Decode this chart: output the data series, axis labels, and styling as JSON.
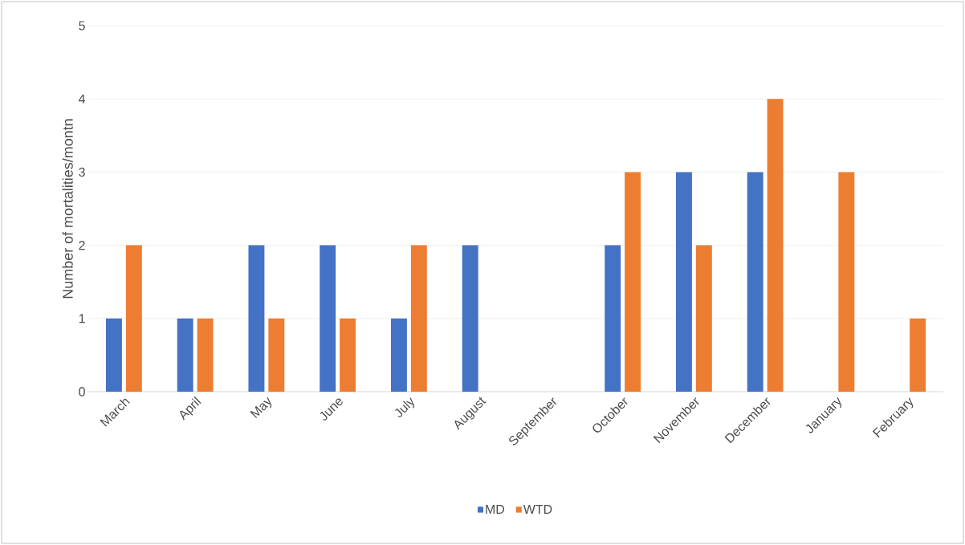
{
  "chart_data": {
    "type": "bar",
    "ylabel": "Number of mortalities/montn",
    "categories": [
      "March",
      "April",
      "May",
      "June",
      "July",
      "August",
      "September",
      "October",
      "November",
      "December",
      "January",
      "February"
    ],
    "series": [
      {
        "name": "MD",
        "color": "#4472c4",
        "values": [
          1,
          1,
          2,
          2,
          1,
          2,
          0,
          2,
          3,
          3,
          0,
          0
        ]
      },
      {
        "name": "WTD",
        "color": "#ed7d31",
        "values": [
          2,
          1,
          1,
          1,
          2,
          0,
          0,
          3,
          2,
          4,
          3,
          1
        ]
      }
    ],
    "ylim": [
      0,
      5
    ],
    "yticks": [
      0,
      1,
      2,
      3,
      4,
      5
    ],
    "grid": "y",
    "legend": "bottom"
  }
}
